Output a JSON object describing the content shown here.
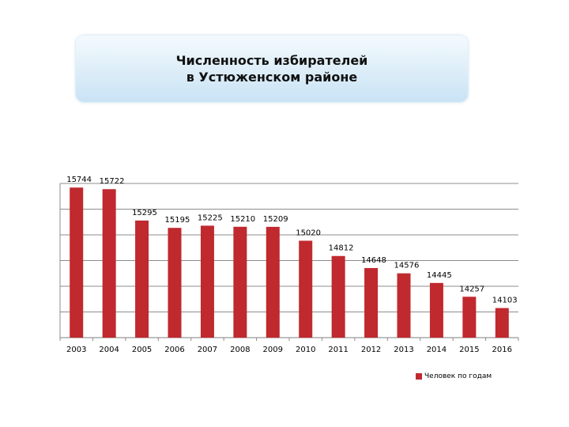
{
  "header": {
    "title_line1": "Численность избирателей",
    "title_line2": "в Устюженском районе"
  },
  "chart_data": {
    "type": "bar",
    "title": "Численность избирателей в Устюженском районе",
    "categories": [
      "2003",
      "2004",
      "2005",
      "2006",
      "2007",
      "2008",
      "2009",
      "2010",
      "2011",
      "2012",
      "2013",
      "2014",
      "2015",
      "2016"
    ],
    "series": [
      {
        "name": "Человек по годам",
        "values": [
          15744,
          15722,
          15295,
          15195,
          15225,
          15210,
          15209,
          15020,
          14812,
          14648,
          14576,
          14445,
          14257,
          14103
        ],
        "color": "#c0292e"
      }
    ],
    "ylim": [
      13700,
      15800
    ],
    "grid": true,
    "legend_position": "bottom-right"
  },
  "legend": {
    "label": "Человек по годам"
  }
}
